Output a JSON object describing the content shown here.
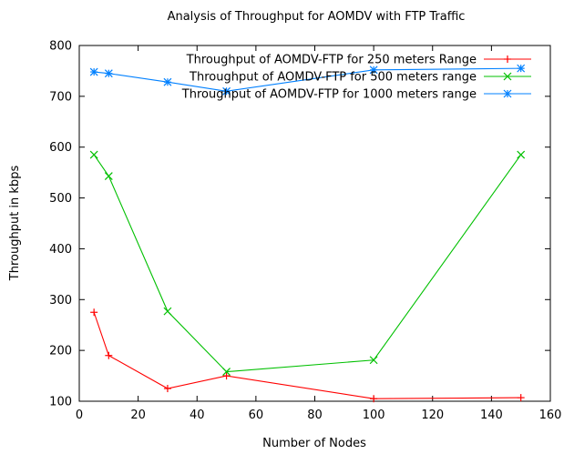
{
  "chart_data": {
    "type": "line",
    "title": "Analysis of Throughput for AOMDV with FTP Traffic",
    "xlabel": "Number of Nodes",
    "ylabel": "Throughput in kbps",
    "xlim": [
      0,
      160
    ],
    "ylim": [
      100,
      800
    ],
    "xticks": [
      0,
      20,
      40,
      60,
      80,
      100,
      120,
      140,
      160
    ],
    "yticks": [
      100,
      200,
      300,
      400,
      500,
      600,
      700,
      800
    ],
    "grid": false,
    "legend_position": "top-right",
    "series": [
      {
        "name": "Throughput of AOMDV-FTP for 250 meters Range",
        "color": "#ff0000",
        "marker": "plus",
        "x": [
          5,
          10,
          30,
          50,
          100,
          150
        ],
        "y": [
          275,
          190,
          125,
          150,
          105,
          107
        ]
      },
      {
        "name": "Throughput of AOMDV-FTP for 500 meters range",
        "color": "#00c000",
        "marker": "cross",
        "x": [
          5,
          10,
          30,
          50,
          100,
          150
        ],
        "y": [
          585,
          543,
          277,
          158,
          181,
          585
        ]
      },
      {
        "name": "Throughput of AOMDV-FTP for 1000 meters range",
        "color": "#0080ff",
        "marker": "star",
        "x": [
          5,
          10,
          30,
          50,
          100,
          150
        ],
        "y": [
          748,
          745,
          728,
          710,
          752,
          755
        ]
      }
    ]
  }
}
